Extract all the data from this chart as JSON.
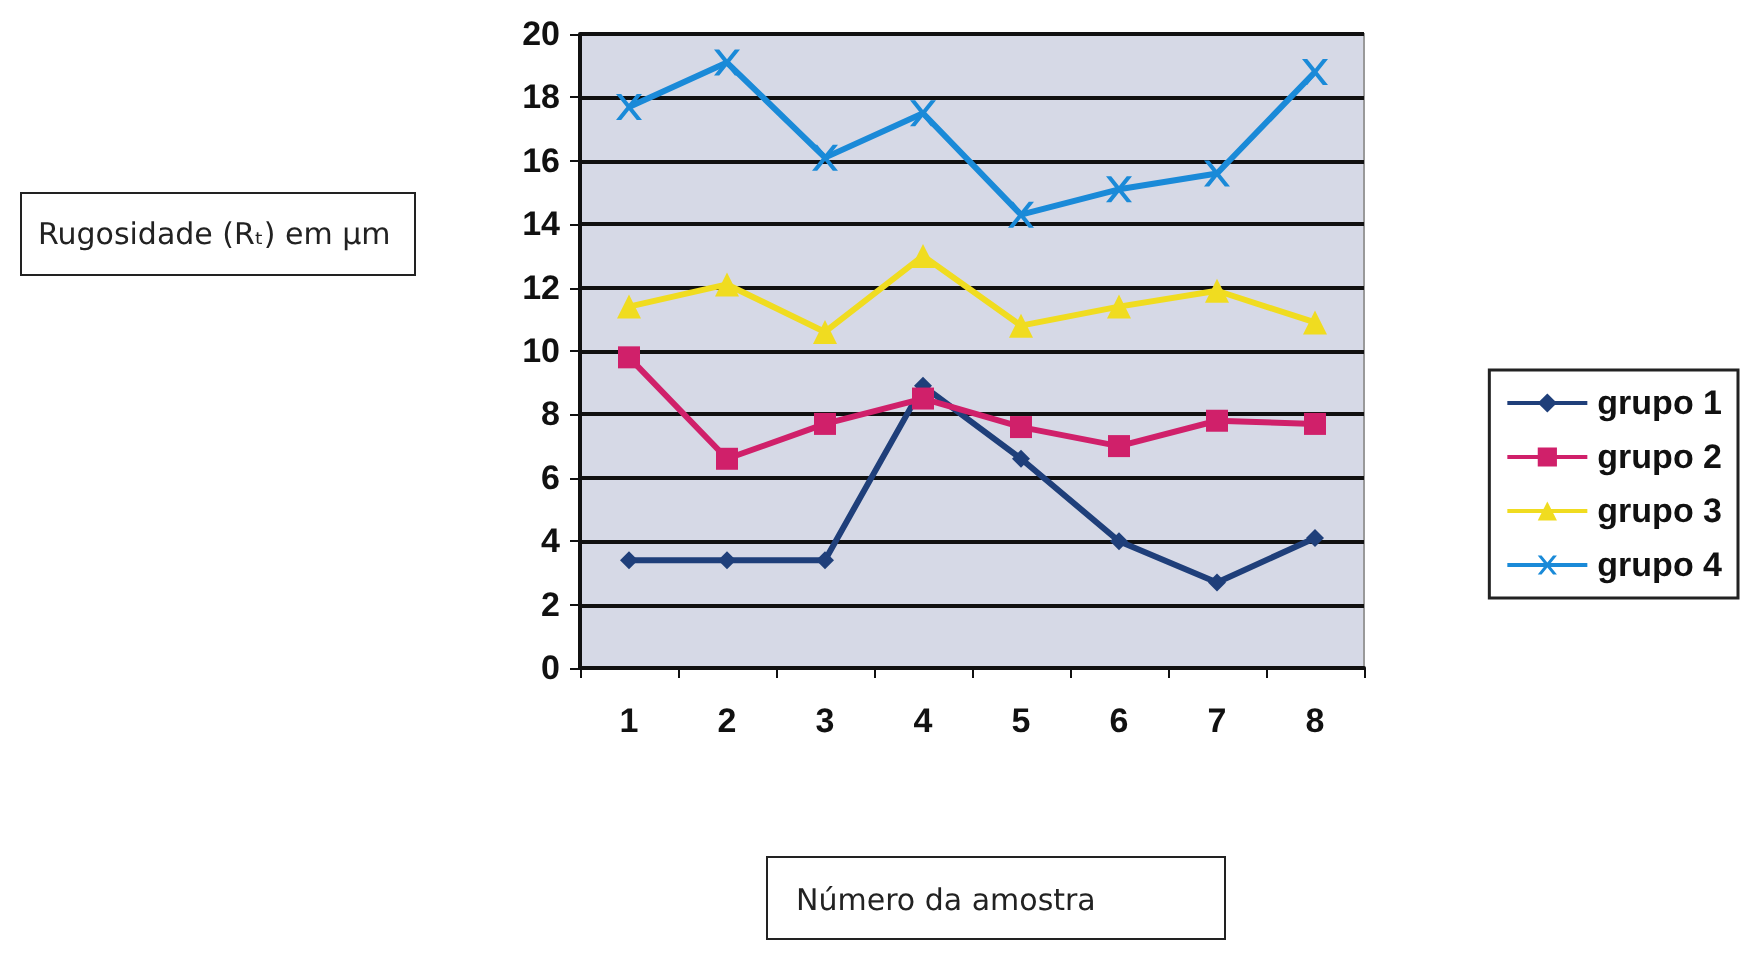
{
  "chart_data": {
    "type": "line",
    "xlabel": "Número da amostra",
    "ylabel": "Rugosidade (Rₜ) em µm",
    "categories": [
      "1",
      "2",
      "3",
      "4",
      "5",
      "6",
      "7",
      "8"
    ],
    "ylim": [
      0,
      20
    ],
    "yticks": [
      0,
      2,
      4,
      6,
      8,
      10,
      12,
      14,
      16,
      18,
      20
    ],
    "grid": "y",
    "legend": "right",
    "series": [
      {
        "name": "grupo 1",
        "color": "#1f3f7a",
        "marker": "diamond",
        "values": [
          3.4,
          3.4,
          3.4,
          8.9,
          6.6,
          4.0,
          2.7,
          4.1
        ]
      },
      {
        "name": "grupo 2",
        "color": "#d0206a",
        "marker": "square",
        "values": [
          9.8,
          6.6,
          7.7,
          8.5,
          7.6,
          7.0,
          7.8,
          7.7
        ]
      },
      {
        "name": "grupo 3",
        "color": "#f0dc20",
        "marker": "triangle",
        "values": [
          11.4,
          12.1,
          10.6,
          13.0,
          10.8,
          11.4,
          11.9,
          10.9
        ]
      },
      {
        "name": "grupo 4",
        "color": "#1a8ad8",
        "marker": "cross",
        "values": [
          17.7,
          19.1,
          16.1,
          17.5,
          14.3,
          15.1,
          15.6,
          18.8
        ]
      }
    ]
  }
}
